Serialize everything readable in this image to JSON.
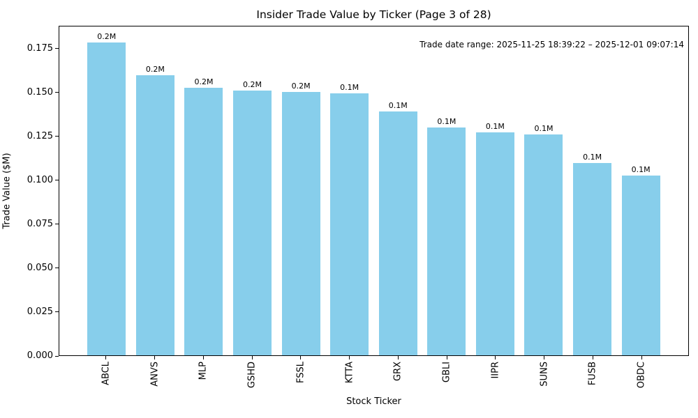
{
  "chart_data": {
    "type": "bar",
    "title": "Insider Trade Value by Ticker (Page 3 of 28)",
    "xlabel": "Stock Ticker",
    "ylabel": "Trade Value ($M)",
    "annotation": "Trade date range: 2025-11-25 18:39:22 – 2025-12-01 09:07:14",
    "categories": [
      "ABCL",
      "ANVS",
      "MLP",
      "GSHD",
      "FSSL",
      "KTTA",
      "GRX",
      "GBLI",
      "IIPR",
      "SUNS",
      "FUSB",
      "OBDC"
    ],
    "values": [
      0.179,
      0.1603,
      0.1528,
      0.1512,
      0.1505,
      0.1499,
      0.1393,
      0.1303,
      0.1274,
      0.1262,
      0.1099,
      0.1028
    ],
    "bar_labels": [
      "0.2M",
      "0.2M",
      "0.2M",
      "0.2M",
      "0.2M",
      "0.1M",
      "0.1M",
      "0.1M",
      "0.1M",
      "0.1M",
      "0.1M",
      "0.1M"
    ],
    "yticks": [
      0.0,
      0.025,
      0.05,
      0.075,
      0.1,
      0.125,
      0.15,
      0.175
    ],
    "ytick_labels": [
      "0.000",
      "0.025",
      "0.050",
      "0.075",
      "0.100",
      "0.125",
      "0.150",
      "0.175"
    ],
    "ylim": [
      0,
      0.188
    ],
    "bar_color": "#87CEEB",
    "grid": false,
    "legend": null
  }
}
